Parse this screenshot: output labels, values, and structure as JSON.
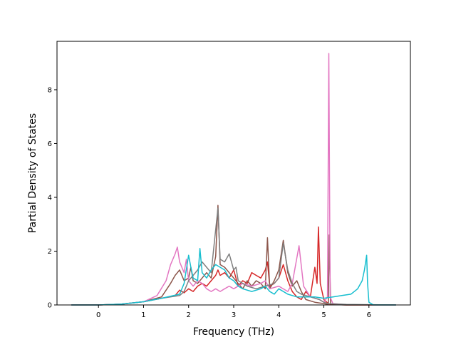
{
  "chart_data": {
    "type": "line",
    "title": "",
    "xlabel": "Frequency (THz)",
    "ylabel": "Partial Density of States",
    "xlim": [
      -0.92,
      6.92
    ],
    "ylim": [
      0,
      9.8
    ],
    "xticks": [
      "0",
      "1",
      "2",
      "3",
      "4",
      "5",
      "6"
    ],
    "yticks": [
      "0",
      "2",
      "4",
      "6",
      "8"
    ],
    "grid": false,
    "legend": "none",
    "series": [
      {
        "color": "#d62728",
        "points": [
          [
            -0.6,
            0
          ],
          [
            0,
            0
          ],
          [
            0.5,
            0.03
          ],
          [
            1.0,
            0.12
          ],
          [
            1.4,
            0.25
          ],
          [
            1.7,
            0.35
          ],
          [
            1.8,
            0.55
          ],
          [
            1.9,
            0.45
          ],
          [
            2.0,
            0.6
          ],
          [
            2.1,
            0.5
          ],
          [
            2.2,
            0.7
          ],
          [
            2.3,
            0.8
          ],
          [
            2.4,
            0.7
          ],
          [
            2.5,
            0.9
          ],
          [
            2.6,
            1.1
          ],
          [
            2.65,
            1.3
          ],
          [
            2.7,
            1.1
          ],
          [
            2.8,
            1.2
          ],
          [
            2.9,
            1.0
          ],
          [
            3.0,
            1.3
          ],
          [
            3.1,
            0.7
          ],
          [
            3.2,
            0.9
          ],
          [
            3.3,
            0.8
          ],
          [
            3.4,
            1.2
          ],
          [
            3.5,
            1.1
          ],
          [
            3.6,
            1.0
          ],
          [
            3.7,
            1.3
          ],
          [
            3.75,
            1.6
          ],
          [
            3.8,
            0.7
          ],
          [
            3.9,
            0.8
          ],
          [
            4.0,
            1.0
          ],
          [
            4.1,
            1.5
          ],
          [
            4.2,
            0.9
          ],
          [
            4.3,
            0.5
          ],
          [
            4.4,
            0.3
          ],
          [
            4.5,
            0.2
          ],
          [
            4.6,
            0.5
          ],
          [
            4.7,
            0.3
          ],
          [
            4.8,
            1.4
          ],
          [
            4.85,
            0.8
          ],
          [
            4.88,
            2.9
          ],
          [
            4.92,
            0.8
          ],
          [
            5.0,
            0.2
          ],
          [
            5.1,
            0.05
          ],
          [
            5.15,
            0.02
          ],
          [
            5.5,
            0
          ],
          [
            6.6,
            0
          ]
        ]
      },
      {
        "color": "#8c564b",
        "points": [
          [
            -0.6,
            0
          ],
          [
            0,
            0
          ],
          [
            0.5,
            0.03
          ],
          [
            1.0,
            0.12
          ],
          [
            1.4,
            0.3
          ],
          [
            1.6,
            0.8
          ],
          [
            1.7,
            1.1
          ],
          [
            1.8,
            1.3
          ],
          [
            1.9,
            0.9
          ],
          [
            2.0,
            1.0
          ],
          [
            2.05,
            1.4
          ],
          [
            2.1,
            0.9
          ],
          [
            2.2,
            0.8
          ],
          [
            2.3,
            1.0
          ],
          [
            2.4,
            1.2
          ],
          [
            2.5,
            1.0
          ],
          [
            2.6,
            1.8
          ],
          [
            2.65,
            3.7
          ],
          [
            2.7,
            1.5
          ],
          [
            2.8,
            1.4
          ],
          [
            2.9,
            1.2
          ],
          [
            3.0,
            1.0
          ],
          [
            3.1,
            0.8
          ],
          [
            3.2,
            0.6
          ],
          [
            3.3,
            0.9
          ],
          [
            3.4,
            0.7
          ],
          [
            3.5,
            0.9
          ],
          [
            3.6,
            0.8
          ],
          [
            3.7,
            0.6
          ],
          [
            3.75,
            2.5
          ],
          [
            3.8,
            0.6
          ],
          [
            3.9,
            0.9
          ],
          [
            4.0,
            1.3
          ],
          [
            4.1,
            2.4
          ],
          [
            4.2,
            1.2
          ],
          [
            4.3,
            0.7
          ],
          [
            4.4,
            0.9
          ],
          [
            4.5,
            0.5
          ],
          [
            4.6,
            0.2
          ],
          [
            4.8,
            0.1
          ],
          [
            5.0,
            0.05
          ],
          [
            5.1,
            0.02
          ],
          [
            5.12,
            2.6
          ],
          [
            5.15,
            0.02
          ],
          [
            5.5,
            0
          ],
          [
            6.6,
            0
          ]
        ]
      },
      {
        "color": "#e377c2",
        "points": [
          [
            -0.6,
            0
          ],
          [
            0,
            0
          ],
          [
            0.5,
            0.03
          ],
          [
            1.0,
            0.12
          ],
          [
            1.3,
            0.35
          ],
          [
            1.5,
            0.9
          ],
          [
            1.6,
            1.5
          ],
          [
            1.7,
            1.9
          ],
          [
            1.75,
            2.15
          ],
          [
            1.8,
            1.6
          ],
          [
            1.9,
            1.2
          ],
          [
            1.95,
            1.7
          ],
          [
            2.0,
            0.9
          ],
          [
            2.1,
            0.7
          ],
          [
            2.2,
            0.9
          ],
          [
            2.3,
            0.8
          ],
          [
            2.4,
            0.6
          ],
          [
            2.5,
            0.5
          ],
          [
            2.6,
            0.6
          ],
          [
            2.7,
            0.5
          ],
          [
            2.8,
            0.6
          ],
          [
            2.9,
            0.7
          ],
          [
            3.0,
            0.6
          ],
          [
            3.2,
            0.8
          ],
          [
            3.4,
            0.7
          ],
          [
            3.6,
            0.8
          ],
          [
            3.7,
            0.9
          ],
          [
            3.8,
            0.6
          ],
          [
            4.0,
            0.7
          ],
          [
            4.2,
            0.5
          ],
          [
            4.3,
            0.8
          ],
          [
            4.45,
            2.2
          ],
          [
            4.55,
            0.7
          ],
          [
            4.7,
            0.3
          ],
          [
            4.9,
            0.2
          ],
          [
            5.0,
            0.1
          ],
          [
            5.08,
            0.3
          ],
          [
            5.11,
            9.35
          ],
          [
            5.14,
            0.3
          ],
          [
            5.2,
            0.05
          ],
          [
            5.5,
            0.01
          ],
          [
            6.6,
            0
          ]
        ]
      },
      {
        "color": "#7f7f7f",
        "points": [
          [
            -0.6,
            0
          ],
          [
            0,
            0
          ],
          [
            0.5,
            0.03
          ],
          [
            1.0,
            0.12
          ],
          [
            1.4,
            0.25
          ],
          [
            1.8,
            0.35
          ],
          [
            1.9,
            0.5
          ],
          [
            2.0,
            0.9
          ],
          [
            2.1,
            1.1
          ],
          [
            2.2,
            1.3
          ],
          [
            2.3,
            1.6
          ],
          [
            2.4,
            1.4
          ],
          [
            2.5,
            1.2
          ],
          [
            2.6,
            2.8
          ],
          [
            2.65,
            3.6
          ],
          [
            2.7,
            1.7
          ],
          [
            2.8,
            1.6
          ],
          [
            2.9,
            1.9
          ],
          [
            3.0,
            1.3
          ],
          [
            3.05,
            1.4
          ],
          [
            3.1,
            0.9
          ],
          [
            3.2,
            0.8
          ],
          [
            3.3,
            0.7
          ],
          [
            3.5,
            0.6
          ],
          [
            3.7,
            0.7
          ],
          [
            3.9,
            0.8
          ],
          [
            4.0,
            1.0
          ],
          [
            4.1,
            2.3
          ],
          [
            4.2,
            1.3
          ],
          [
            4.3,
            0.8
          ],
          [
            4.4,
            0.5
          ],
          [
            4.5,
            0.4
          ],
          [
            4.7,
            0.3
          ],
          [
            4.9,
            0.2
          ],
          [
            5.0,
            0.1
          ],
          [
            5.1,
            0.05
          ],
          [
            5.5,
            0.02
          ],
          [
            6.6,
            0
          ]
        ]
      },
      {
        "color": "#17becf",
        "points": [
          [
            -0.6,
            0
          ],
          [
            0,
            0
          ],
          [
            0.5,
            0.03
          ],
          [
            1.0,
            0.12
          ],
          [
            1.4,
            0.25
          ],
          [
            1.8,
            0.4
          ],
          [
            1.9,
            0.8
          ],
          [
            2.0,
            1.85
          ],
          [
            2.05,
            1.4
          ],
          [
            2.1,
            1.0
          ],
          [
            2.2,
            0.9
          ],
          [
            2.25,
            2.1
          ],
          [
            2.3,
            1.2
          ],
          [
            2.4,
            1.0
          ],
          [
            2.5,
            1.3
          ],
          [
            2.6,
            1.5
          ],
          [
            2.7,
            1.4
          ],
          [
            2.8,
            1.3
          ],
          [
            2.9,
            1.0
          ],
          [
            3.0,
            0.9
          ],
          [
            3.1,
            0.7
          ],
          [
            3.2,
            0.6
          ],
          [
            3.4,
            0.5
          ],
          [
            3.6,
            0.6
          ],
          [
            3.7,
            0.7
          ],
          [
            3.8,
            0.5
          ],
          [
            3.9,
            0.4
          ],
          [
            4.0,
            0.6
          ],
          [
            4.2,
            0.4
          ],
          [
            4.4,
            0.3
          ],
          [
            4.6,
            0.3
          ],
          [
            4.8,
            0.3
          ],
          [
            5.0,
            0.25
          ],
          [
            5.2,
            0.3
          ],
          [
            5.4,
            0.35
          ],
          [
            5.6,
            0.4
          ],
          [
            5.75,
            0.6
          ],
          [
            5.85,
            0.9
          ],
          [
            5.9,
            1.3
          ],
          [
            5.95,
            1.85
          ],
          [
            5.97,
            0.8
          ],
          [
            6.0,
            0.1
          ],
          [
            6.1,
            0
          ],
          [
            6.6,
            0
          ]
        ]
      }
    ]
  }
}
